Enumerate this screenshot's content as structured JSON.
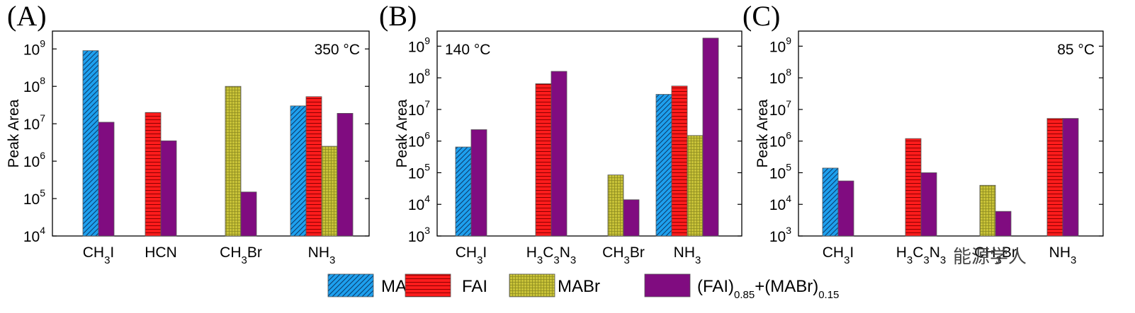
{
  "colors": {
    "MAI": "#1ea0ee",
    "FAI": "#ff1c1c",
    "MABr": "#c8c238",
    "mix": "#800c80"
  },
  "legend": {
    "items": [
      {
        "key": "MAI",
        "label": "MAI",
        "pattern": "diag"
      },
      {
        "key": "FAI",
        "label": "FAI",
        "pattern": "horiz"
      },
      {
        "key": "MABr",
        "label": "MABr",
        "pattern": "grid"
      },
      {
        "key": "mix",
        "label": "(FAI)0.85+(MABr)0.15",
        "pattern": "solid"
      }
    ]
  },
  "watermark": "能源学人",
  "chart_data": [
    {
      "type": "bar",
      "panel": "(A)",
      "temperature": "350 °C",
      "ylabel": "Peak Area",
      "yscale": "log",
      "ylim": [
        10000,
        3000000000
      ],
      "yticks": [
        4,
        5,
        6,
        7,
        8,
        9
      ],
      "categories": [
        "CH3I",
        "HCN",
        "CH3Br",
        "NH3"
      ],
      "series": [
        {
          "name": "MAI",
          "values": [
            900000000,
            null,
            null,
            30000000
          ]
        },
        {
          "name": "FAI",
          "values": [
            null,
            20000000,
            null,
            53000000
          ]
        },
        {
          "name": "MABr",
          "values": [
            null,
            null,
            100000000,
            2500000
          ]
        },
        {
          "name": "(FAI)0.85+(MABr)0.15",
          "values": [
            11000000,
            3500000,
            150000,
            19000000
          ]
        }
      ]
    },
    {
      "type": "bar",
      "panel": "(B)",
      "temperature": "140 °C",
      "ylabel": "Peak Area",
      "yscale": "log",
      "ylim": [
        1000,
        3000000000
      ],
      "yticks": [
        3,
        4,
        5,
        6,
        7,
        8,
        9
      ],
      "categories": [
        "CH3I",
        "H3C3N3",
        "CH3Br",
        "NH3"
      ],
      "series": [
        {
          "name": "MAI",
          "values": [
            650000,
            null,
            null,
            30000000
          ]
        },
        {
          "name": "FAI",
          "values": [
            null,
            65000000,
            null,
            55000000
          ]
        },
        {
          "name": "MABr",
          "values": [
            null,
            null,
            85000,
            1500000
          ]
        },
        {
          "name": "(FAI)0.85+(MABr)0.15",
          "values": [
            2300000,
            160000000,
            14000,
            1800000000
          ]
        }
      ]
    },
    {
      "type": "bar",
      "panel": "(C)",
      "temperature": "85 °C",
      "ylabel": "Peak Area",
      "yscale": "log",
      "ylim": [
        1000,
        3000000000
      ],
      "yticks": [
        3,
        4,
        5,
        6,
        7,
        8,
        9
      ],
      "categories": [
        "CH3I",
        "H3C3N3",
        "CH3Br",
        "NH3"
      ],
      "series": [
        {
          "name": "MAI",
          "values": [
            140000,
            null,
            null,
            null
          ]
        },
        {
          "name": "FAI",
          "values": [
            null,
            1200000,
            null,
            5200000
          ]
        },
        {
          "name": "MABr",
          "values": [
            null,
            null,
            40000,
            null
          ]
        },
        {
          "name": "(FAI)0.85+(MABr)0.15",
          "values": [
            55000,
            100000,
            6000,
            5200000
          ]
        }
      ]
    }
  ]
}
